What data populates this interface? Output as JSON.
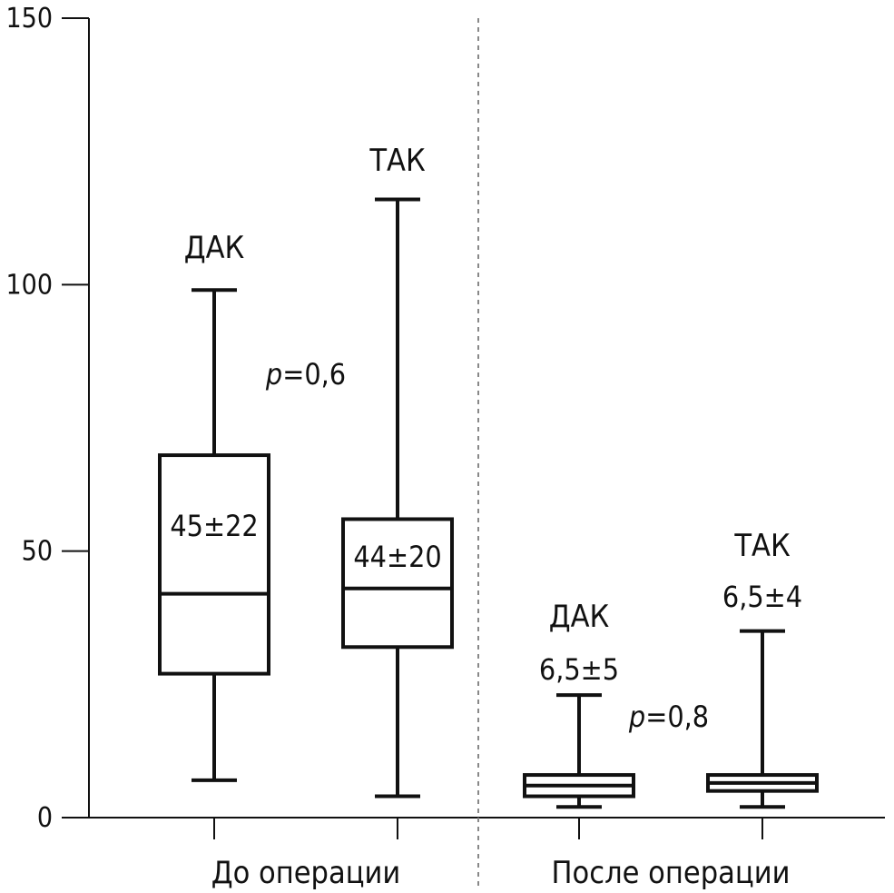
{
  "chart_data": {
    "type": "boxplot",
    "y_axis": {
      "ylim": [
        0,
        150
      ],
      "ticks": [
        0,
        50,
        100,
        150
      ],
      "tick_labels": [
        "0",
        "50",
        "100",
        "150"
      ]
    },
    "groups": [
      {
        "label": "До операции",
        "p_label_italic": "p",
        "p_label_rest": "=0,6",
        "boxes": [
          {
            "name": "ДАК",
            "stat": "45±22",
            "min": 7,
            "q1": 27,
            "median": 42,
            "q3": 68,
            "max": 99
          },
          {
            "name": "ТАК",
            "stat": "44±20",
            "min": 4,
            "q1": 32,
            "median": 43,
            "q3": 56,
            "max": 116
          }
        ]
      },
      {
        "label": "После операции",
        "p_label_italic": "p",
        "p_label_rest": "=0,8",
        "boxes": [
          {
            "name": "ДАК",
            "stat": "6,5±5",
            "min": 2,
            "q1": 4,
            "median": 6,
            "q3": 8,
            "max": 23
          },
          {
            "name": "ТАК",
            "stat": "6,5±4",
            "min": 2,
            "q1": 5,
            "median": 6.5,
            "q3": 8,
            "max": 35
          }
        ]
      }
    ],
    "separator": "dashed"
  }
}
